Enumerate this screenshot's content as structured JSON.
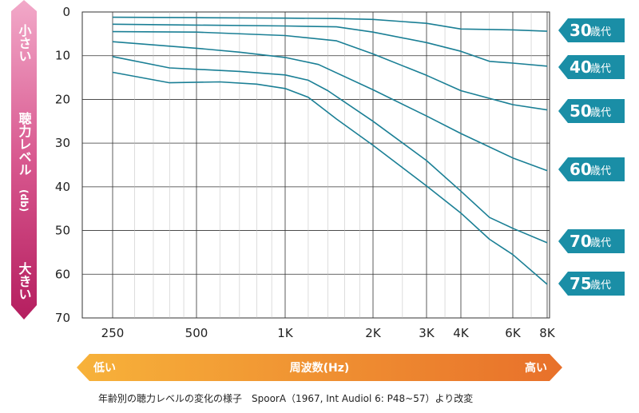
{
  "chart_data": {
    "type": "line",
    "ylabel_top": "小さい",
    "ylabel_mid": "聴力レベル",
    "ylabel_unit": "(db)",
    "ylabel_bottom": "大きい",
    "x_ticks": [
      "250",
      "500",
      "1K",
      "2K",
      "3K",
      "4K",
      "6K",
      "8K"
    ],
    "x_hz": [
      250,
      500,
      1000,
      2000,
      3000,
      4000,
      6000,
      8000
    ],
    "y_ticks": [
      "0",
      "10",
      "20",
      "30",
      "40",
      "50",
      "60",
      "70"
    ],
    "ylim": [
      0,
      70
    ],
    "y_inverted": true,
    "x_scale": "log",
    "grid": true,
    "xbar": {
      "low": "低い",
      "label": "周波数(Hz)",
      "high": "高い"
    },
    "caption": "年齢別の聴力レベルの変化の様子　SpoorA（1967, Int Audiol 6: P48~57）より改変",
    "line_color": "#1a7f95",
    "tag_color": "#1a8ea6",
    "series": [
      {
        "age": "30",
        "unit": "歳代",
        "points": [
          [
            250,
            1.2
          ],
          [
            500,
            1.3
          ],
          [
            1000,
            1.4
          ],
          [
            1500,
            1.5
          ],
          [
            2000,
            1.7
          ],
          [
            3000,
            2.6
          ],
          [
            4000,
            3.9
          ],
          [
            6000,
            4.1
          ],
          [
            8000,
            4.4
          ]
        ]
      },
      {
        "age": "40",
        "unit": "歳代",
        "points": [
          [
            250,
            2.8
          ],
          [
            500,
            3.0
          ],
          [
            1000,
            3.2
          ],
          [
            1500,
            3.4
          ],
          [
            2000,
            4.6
          ],
          [
            3000,
            7.0
          ],
          [
            4000,
            9.0
          ],
          [
            5000,
            11.3
          ],
          [
            6000,
            11.7
          ],
          [
            8000,
            12.4
          ]
        ]
      },
      {
        "age": "50",
        "unit": "歳代",
        "points": [
          [
            250,
            4.5
          ],
          [
            500,
            4.6
          ],
          [
            1000,
            5.4
          ],
          [
            1500,
            6.6
          ],
          [
            2000,
            9.6
          ],
          [
            3000,
            14.5
          ],
          [
            4000,
            18.0
          ],
          [
            6000,
            21.2
          ],
          [
            8000,
            22.4
          ]
        ]
      },
      {
        "age": "60",
        "unit": "歳代",
        "points": [
          [
            250,
            6.8
          ],
          [
            500,
            8.3
          ],
          [
            700,
            9.2
          ],
          [
            1000,
            10.4
          ],
          [
            1300,
            12.0
          ],
          [
            2000,
            17.8
          ],
          [
            3000,
            23.8
          ],
          [
            4000,
            27.8
          ],
          [
            6000,
            33.4
          ],
          [
            8000,
            36.3
          ]
        ]
      },
      {
        "age": "70",
        "unit": "歳代",
        "points": [
          [
            250,
            10.2
          ],
          [
            400,
            12.8
          ],
          [
            700,
            13.6
          ],
          [
            1000,
            14.4
          ],
          [
            1200,
            15.6
          ],
          [
            1400,
            18.0
          ],
          [
            2000,
            25.0
          ],
          [
            3000,
            34.0
          ],
          [
            4000,
            41.0
          ],
          [
            5000,
            47.0
          ],
          [
            6000,
            49.5
          ],
          [
            8000,
            52.8
          ]
        ]
      },
      {
        "age": "75",
        "unit": "歳代",
        "points": [
          [
            250,
            13.8
          ],
          [
            400,
            16.2
          ],
          [
            600,
            16.0
          ],
          [
            800,
            16.5
          ],
          [
            1000,
            17.5
          ],
          [
            1200,
            19.5
          ],
          [
            1500,
            24.5
          ],
          [
            2000,
            30.5
          ],
          [
            3000,
            39.8
          ],
          [
            4000,
            46.0
          ],
          [
            5000,
            52.0
          ],
          [
            6000,
            55.5
          ],
          [
            8000,
            62.3
          ]
        ]
      }
    ]
  }
}
